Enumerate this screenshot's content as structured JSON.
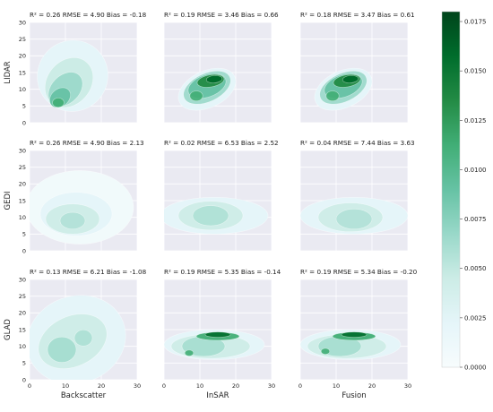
{
  "chart_data": {
    "type": "heatmap",
    "subtype": "kde-density-grid",
    "rows": [
      "LIDAR",
      "GEDI",
      "GLAD"
    ],
    "columns": [
      "Backscatter",
      "InSAR",
      "Fusion"
    ],
    "xlim": [
      0,
      30
    ],
    "xticks": [
      0,
      10,
      20,
      30
    ],
    "ylim": [
      0,
      30
    ],
    "yticks": [
      0,
      5,
      10,
      15,
      20,
      25,
      30
    ],
    "panels": [
      {
        "row": "LIDAR",
        "column": "Backscatter",
        "title": "R² = 0.26 RMSE = 4.90 Bias = -0.18"
      },
      {
        "row": "LIDAR",
        "column": "InSAR",
        "title": "R² = 0.19 RMSE = 3.46 Bias = 0.66"
      },
      {
        "row": "LIDAR",
        "column": "Fusion",
        "title": "R² = 0.18 RMSE = 3.47 Bias = 0.61"
      },
      {
        "row": "GEDI",
        "column": "Backscatter",
        "title": "R² = 0.26 RMSE = 4.90 Bias = 2.13"
      },
      {
        "row": "GEDI",
        "column": "InSAR",
        "title": "R² = 0.02 RMSE = 6.53 Bias = 2.52"
      },
      {
        "row": "GEDI",
        "column": "Fusion",
        "title": "R² = 0.04 RMSE = 7.44 Bias = 3.63"
      },
      {
        "row": "GLAD",
        "column": "Backscatter",
        "title": "R² = 0.13 RMSE = 6.21 Bias = -1.08"
      },
      {
        "row": "GLAD",
        "column": "InSAR",
        "title": "R² = 0.19 RMSE = 5.35 Bias = -0.14"
      },
      {
        "row": "GLAD",
        "column": "Fusion",
        "title": "R² = 0.19 RMSE = 5.34 Bias = -0.20"
      }
    ],
    "colorbar": {
      "range": [
        0,
        0.018
      ],
      "ticks": [
        "0.0000",
        "0.0025",
        "0.0050",
        "0.0075",
        "0.0100",
        "0.0125",
        "0.0150",
        "0.0175"
      ],
      "colors": [
        "#f7fcfd",
        "#e5f5f9",
        "#ccece6",
        "#99d8c9",
        "#66c2a4",
        "#41ae76",
        "#238b45",
        "#006d2c",
        "#00441b"
      ]
    },
    "panel_background": "#eaeaf2",
    "grid": true
  }
}
